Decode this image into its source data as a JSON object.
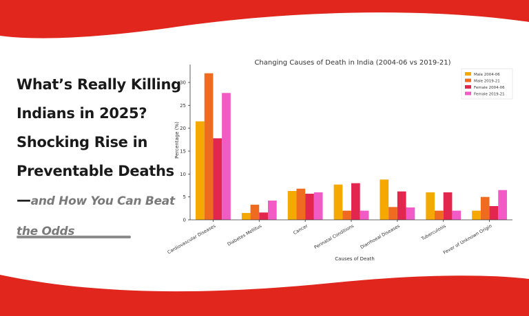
{
  "page": {
    "headline_main": "What’s Really Killing Indians in 2025? Shocking Rise in Preventable Deaths—",
    "headline_sub": "and How You Can Beat the Odds",
    "colors": {
      "banner_red": "#e0261d",
      "headline": "#1a1a1a",
      "subheadline": "#7a7a7a"
    }
  },
  "chart_data": {
    "type": "bar",
    "title": "Changing Causes of Death in India (2004-06 vs 2019-21)",
    "xlabel": "Causes of Death",
    "ylabel": "Percentage (%)",
    "ylim": [
      0,
      33
    ],
    "yticks": [
      0,
      5,
      10,
      15,
      20,
      25,
      30
    ],
    "grid": false,
    "legend_position": "top-right",
    "categories": [
      "Cardiovascular Diseases",
      "Diabetes Mellitus",
      "Cancer",
      "Perinatal Conditions",
      "Diarrhoeal Diseases",
      "Tuberculosis",
      "Fever of Unknown Origin"
    ],
    "series": [
      {
        "name": "Male 2004-06",
        "color": "#f5a800",
        "values": [
          21.5,
          1.5,
          6.3,
          7.7,
          8.8,
          6.0,
          2.0
        ]
      },
      {
        "name": "Male 2019-21",
        "color": "#ee6b20",
        "values": [
          32.0,
          3.3,
          6.8,
          2.0,
          2.8,
          2.0,
          5.0
        ]
      },
      {
        "name": "Female 2004-06",
        "color": "#e2264e",
        "values": [
          17.8,
          1.6,
          5.7,
          8.0,
          6.2,
          6.0,
          3.0
        ]
      },
      {
        "name": "Female 2019-21",
        "color": "#f25ac5",
        "values": [
          27.7,
          4.2,
          6.0,
          2.0,
          2.7,
          2.0,
          6.5
        ]
      }
    ]
  }
}
